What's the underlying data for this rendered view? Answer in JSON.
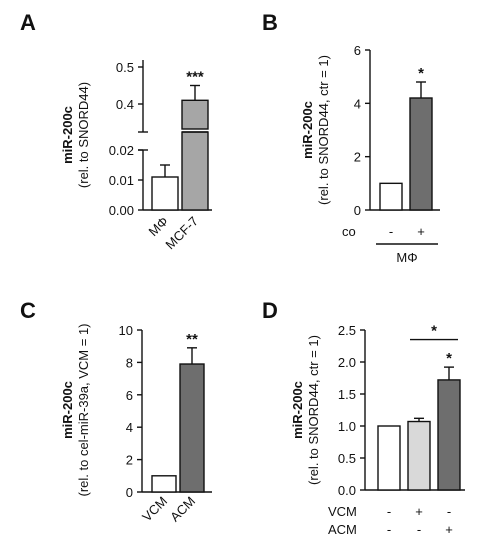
{
  "chart_data": [
    {
      "panel": "A",
      "type": "bar",
      "ylabel_main": "miR-200c",
      "ylabel_sub": "(rel. to SNORD44)",
      "categories": [
        "MΦ",
        "MCF-7"
      ],
      "values": [
        0.011,
        0.41
      ],
      "errors": [
        0.004,
        0.04
      ],
      "bar_colors": [
        "#ffffff",
        "#a6a6a6"
      ],
      "significance": [
        "",
        "***"
      ],
      "axis_break": true,
      "ylim_lower": [
        0.0,
        0.02
      ],
      "ylim_upper": [
        0.35,
        0.5
      ],
      "yticks_lower": [
        "0.00",
        "0.01",
        "0.02"
      ],
      "yticks_upper": [
        "0.4",
        "0.5"
      ]
    },
    {
      "panel": "B",
      "type": "bar",
      "ylabel_main": "miR-200c",
      "ylabel_sub": "(rel. to SNORD44, ctr = 1)",
      "categories": [
        "-",
        "+"
      ],
      "values": [
        1.0,
        4.2
      ],
      "errors": [
        0.0,
        0.6
      ],
      "bar_colors": [
        "#ffffff",
        "#6e6e6e"
      ],
      "significance": [
        "",
        "*"
      ],
      "ylim": [
        0,
        6
      ],
      "yticks": [
        "0",
        "2",
        "4",
        "6"
      ],
      "row_label": "co",
      "group_label": "MΦ"
    },
    {
      "panel": "C",
      "type": "bar",
      "ylabel_main": "miR-200c",
      "ylabel_sub": "(rel. to cel-miR-39a, VCM = 1)",
      "categories": [
        "VCM",
        "ACM"
      ],
      "values": [
        1.0,
        7.9
      ],
      "errors": [
        0.0,
        1.0
      ],
      "bar_colors": [
        "#ffffff",
        "#6e6e6e"
      ],
      "significance": [
        "",
        "**"
      ],
      "ylim": [
        0,
        10
      ],
      "yticks": [
        "0",
        "2",
        "4",
        "6",
        "8",
        "10"
      ]
    },
    {
      "panel": "D",
      "type": "bar",
      "ylabel_main": "miR-200c",
      "ylabel_sub": "(rel. to SNORD44, ctr = 1)",
      "values": [
        1.0,
        1.07,
        1.72
      ],
      "errors": [
        0.0,
        0.05,
        0.2
      ],
      "bar_colors": [
        "#ffffff",
        "#d9d9d9",
        "#6e6e6e"
      ],
      "significance": [
        "",
        "",
        "*"
      ],
      "bracket_star": "*",
      "ylim": [
        0,
        2.5
      ],
      "yticks": [
        "0.0",
        "0.5",
        "1.0",
        "1.5",
        "2.0",
        "2.5"
      ],
      "rows": [
        {
          "label": "VCM",
          "signs": [
            "-",
            "+",
            "-"
          ]
        },
        {
          "label": "ACM",
          "signs": [
            "-",
            "-",
            "+"
          ]
        }
      ]
    }
  ]
}
